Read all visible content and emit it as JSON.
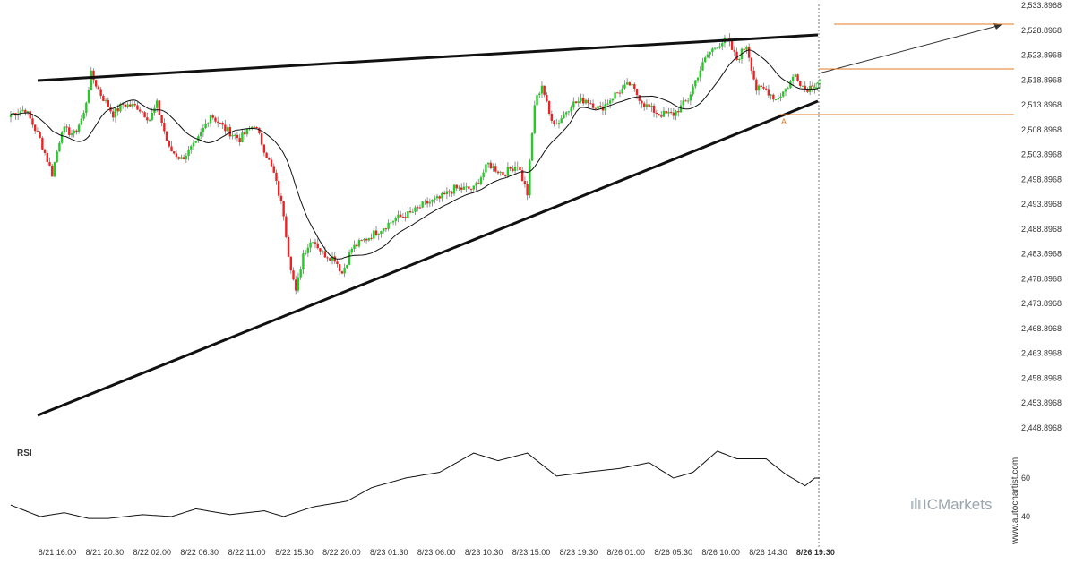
{
  "chart_data": {
    "type": "candlestick",
    "indicators": [
      "RSI",
      "moving average"
    ],
    "pattern_point_label": "A",
    "y_ticks": [
      "2,533.8968",
      "2,528.8968",
      "2,523.8968",
      "2,518.8968",
      "2,513.8968",
      "2,508.8968",
      "2,503.8968",
      "2,498.8968",
      "2,493.8968",
      "2,488.8968",
      "2,483.8968",
      "2,478.8968",
      "2,473.8968",
      "2,468.8968",
      "2,463.8968",
      "2,458.8968",
      "2,453.8968",
      "2,448.8968"
    ],
    "x_ticks": [
      "8/21 16:00",
      "8/21 20:30",
      "8/22 02:00",
      "8/22 06:30",
      "8/22 11:00",
      "8/22 15:30",
      "8/22 20:00",
      "8/23 01:30",
      "8/23 06:00",
      "8/23 10:30",
      "8/23 15:00",
      "8/23 19:30",
      "8/26 01:00",
      "8/26 05:30",
      "8/26 10:00",
      "8/26 14:30",
      "8/26 19:30"
    ],
    "rsi_label": "RSI",
    "rsi_ticks": [
      "60",
      "40"
    ],
    "close_path": [
      [
        0,
        2512.0
      ],
      [
        6,
        2513.0
      ],
      [
        12,
        2507.0
      ],
      [
        17,
        2500.0
      ],
      [
        21,
        2509.0
      ],
      [
        26,
        2508.0
      ],
      [
        30,
        2512.0
      ],
      [
        33,
        2520.0
      ],
      [
        37,
        2516.0
      ],
      [
        42,
        2512.0
      ],
      [
        46,
        2514.0
      ],
      [
        52,
        2513.5
      ],
      [
        57,
        2511.0
      ],
      [
        60,
        2514.0
      ],
      [
        65,
        2505.0
      ],
      [
        70,
        2503.0
      ],
      [
        76,
        2506.0
      ],
      [
        82,
        2512.0
      ],
      [
        88,
        2509.0
      ],
      [
        94,
        2507.0
      ],
      [
        100,
        2510.0
      ],
      [
        104,
        2505.0
      ],
      [
        108,
        2500.0
      ],
      [
        112,
        2492.0
      ],
      [
        114,
        2484.0
      ],
      [
        117,
        2476.0
      ],
      [
        120,
        2484.0
      ],
      [
        124,
        2487.0
      ],
      [
        128,
        2484.0
      ],
      [
        133,
        2483.0
      ],
      [
        136,
        2480.0
      ],
      [
        140,
        2485.0
      ],
      [
        146,
        2487.0
      ],
      [
        152,
        2489.0
      ],
      [
        158,
        2491.0
      ],
      [
        164,
        2492.0
      ],
      [
        170,
        2494.0
      ],
      [
        176,
        2495.0
      ],
      [
        182,
        2497.0
      ],
      [
        190,
        2497.0
      ],
      [
        196,
        2502.0
      ],
      [
        202,
        2500.0
      ],
      [
        208,
        2502.0
      ],
      [
        212,
        2496.0
      ],
      [
        215,
        2514.0
      ],
      [
        218,
        2518.0
      ],
      [
        221,
        2512.0
      ],
      [
        224,
        2510.0
      ],
      [
        230,
        2514.0
      ],
      [
        236,
        2515.0
      ],
      [
        242,
        2513.0
      ],
      [
        248,
        2516.0
      ],
      [
        254,
        2518.0
      ],
      [
        260,
        2514.0
      ],
      [
        266,
        2512.0
      ],
      [
        272,
        2512.0
      ],
      [
        278,
        2515.0
      ],
      [
        282,
        2520.0
      ],
      [
        286,
        2524.0
      ],
      [
        290,
        2526.0
      ],
      [
        294,
        2527.0
      ],
      [
        298,
        2523.0
      ],
      [
        302,
        2526.0
      ],
      [
        306,
        2517.0
      ],
      [
        310,
        2517.0
      ],
      [
        314,
        2515.0
      ],
      [
        318,
        2517.0
      ],
      [
        322,
        2520.0
      ],
      [
        326,
        2517.0
      ],
      [
        330,
        2518.0
      ],
      [
        332,
        2519.0
      ]
    ],
    "rsi_path": [
      [
        0,
        46
      ],
      [
        12,
        40
      ],
      [
        22,
        42
      ],
      [
        32,
        39
      ],
      [
        40,
        39
      ],
      [
        54,
        41
      ],
      [
        66,
        40
      ],
      [
        76,
        44
      ],
      [
        90,
        41
      ],
      [
        104,
        43
      ],
      [
        112,
        40
      ],
      [
        124,
        45
      ],
      [
        138,
        48
      ],
      [
        148,
        55
      ],
      [
        162,
        60
      ],
      [
        176,
        63
      ],
      [
        190,
        73
      ],
      [
        200,
        69
      ],
      [
        212,
        73
      ],
      [
        224,
        61
      ],
      [
        236,
        63
      ],
      [
        250,
        65
      ],
      [
        262,
        68
      ],
      [
        272,
        60
      ],
      [
        280,
        63
      ],
      [
        290,
        74
      ],
      [
        298,
        70
      ],
      [
        310,
        70
      ],
      [
        318,
        62
      ],
      [
        326,
        56
      ],
      [
        330,
        60
      ],
      [
        332,
        60
      ]
    ]
  }
}
